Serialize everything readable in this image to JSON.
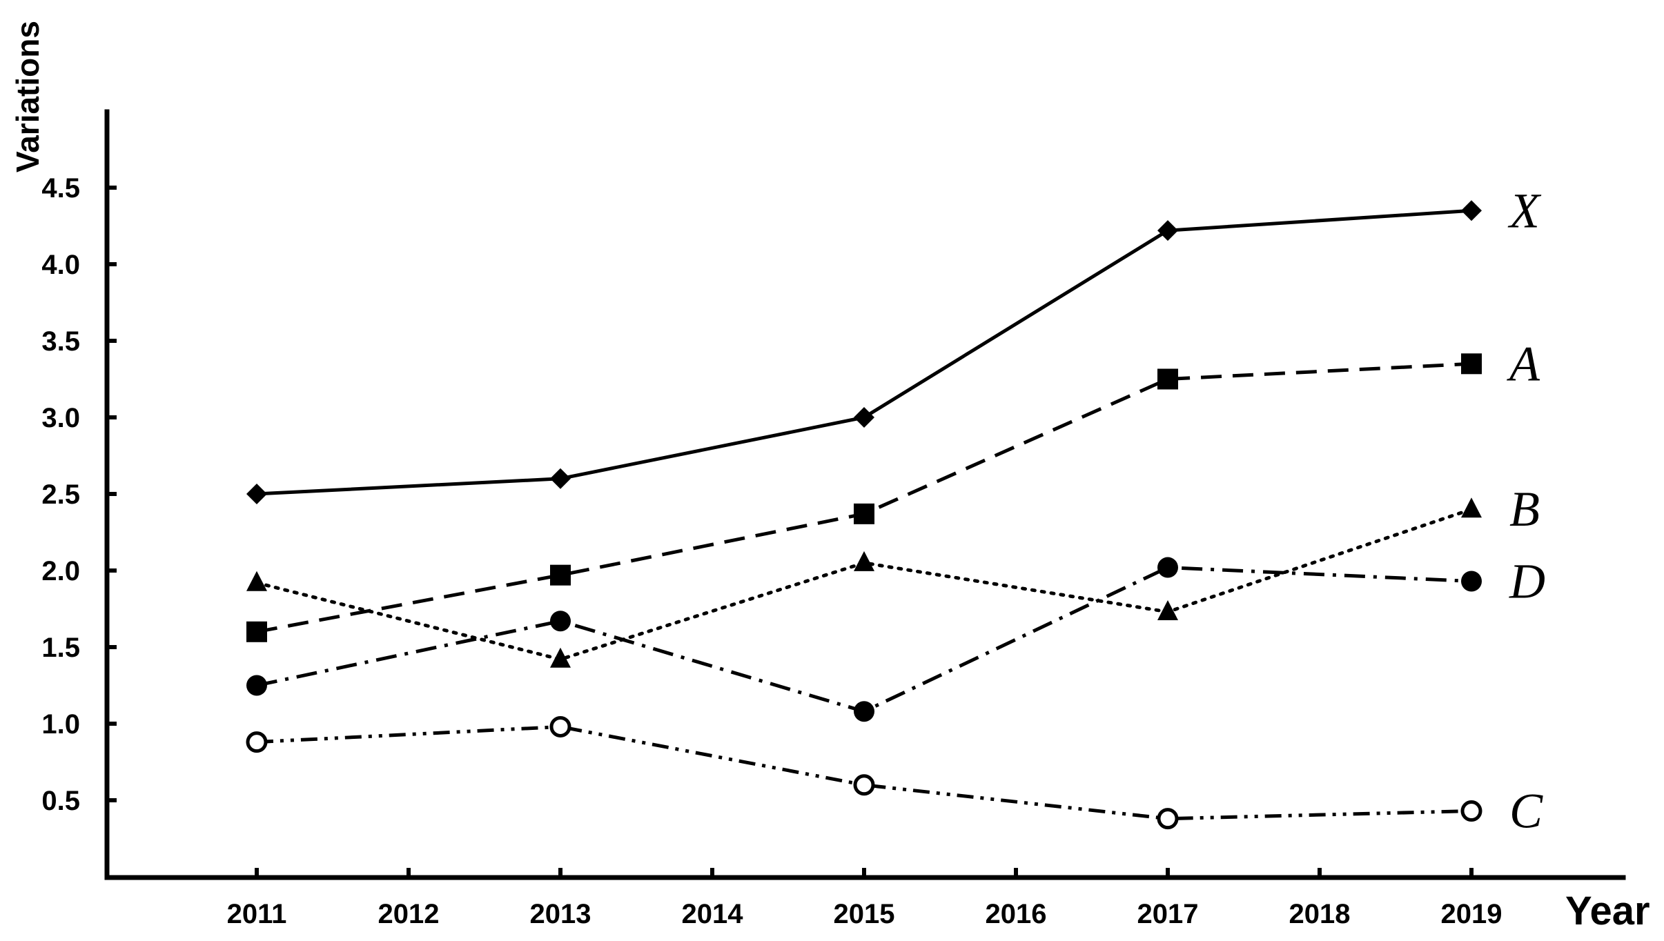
{
  "chart_data": {
    "type": "line",
    "xlabel": "Year",
    "ylabel": "Variations",
    "x": [
      2011,
      2012,
      2013,
      2014,
      2015,
      2016,
      2017,
      2018,
      2019
    ],
    "y_ticks": [
      "0.5",
      "1.0",
      "1.5",
      "2.0",
      "2.5",
      "3.0",
      "3.5",
      "4.0",
      "4.5"
    ],
    "ylim": [
      0,
      5
    ],
    "grid": false,
    "series": [
      {
        "name": "X",
        "marker": "diamond",
        "line": "solid",
        "points": [
          [
            2011,
            2.5
          ],
          [
            2013,
            2.6
          ],
          [
            2015,
            3.0
          ],
          [
            2017,
            4.22
          ],
          [
            2019,
            4.35
          ]
        ]
      },
      {
        "name": "A",
        "marker": "square",
        "line": "dashed",
        "points": [
          [
            2011,
            1.6
          ],
          [
            2013,
            1.97
          ],
          [
            2015,
            2.37
          ],
          [
            2017,
            3.25
          ],
          [
            2019,
            3.35
          ]
        ]
      },
      {
        "name": "B",
        "marker": "triangle",
        "line": "dotted",
        "points": [
          [
            2011,
            1.92
          ],
          [
            2013,
            1.42
          ],
          [
            2015,
            2.05
          ],
          [
            2017,
            1.73
          ],
          [
            2019,
            2.4
          ]
        ]
      },
      {
        "name": "D",
        "marker": "filled-circle",
        "line": "dash-dot",
        "points": [
          [
            2011,
            1.25
          ],
          [
            2013,
            1.67
          ],
          [
            2015,
            1.08
          ],
          [
            2017,
            2.02
          ],
          [
            2019,
            1.93
          ]
        ]
      },
      {
        "name": "C",
        "marker": "open-circle",
        "line": "dash-dot-dot",
        "points": [
          [
            2011,
            0.88
          ],
          [
            2013,
            0.98
          ],
          [
            2015,
            0.6
          ],
          [
            2017,
            0.38
          ],
          [
            2019,
            0.43
          ]
        ]
      }
    ]
  }
}
